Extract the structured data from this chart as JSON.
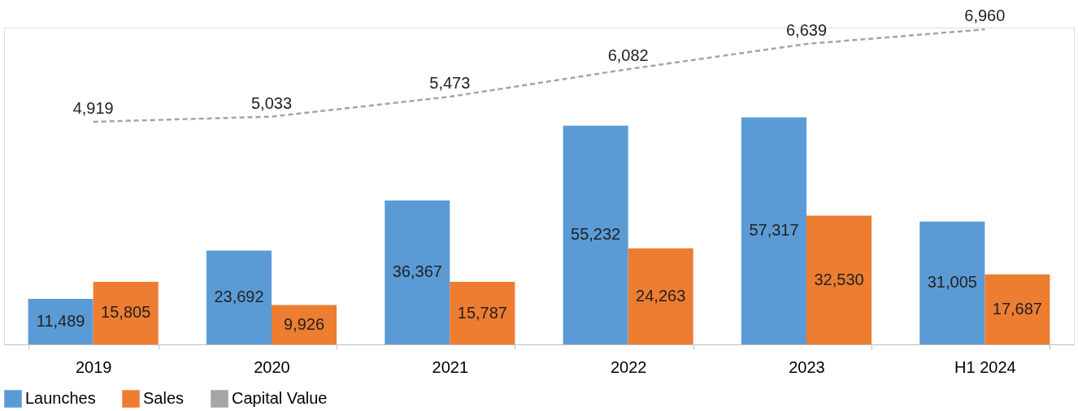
{
  "chart_data": {
    "type": "bar",
    "categories": [
      "2019",
      "2020",
      "2021",
      "2022",
      "2023",
      "H1 2024"
    ],
    "series": [
      {
        "name": "Launches",
        "color": "#5b9bd5",
        "values": [
          11489,
          23692,
          36367,
          55232,
          57317,
          31005
        ],
        "value_labels": [
          "11,489",
          "23,692",
          "36,367",
          "55,232",
          "57,317",
          "31,005"
        ]
      },
      {
        "name": "Sales",
        "color": "#ed7d31",
        "values": [
          15805,
          9926,
          15787,
          24263,
          32530,
          17687
        ],
        "value_labels": [
          "15,805",
          "9,926",
          "15,787",
          "24,263",
          "32,530",
          "17,687"
        ]
      },
      {
        "name": "Capital Value",
        "type": "line",
        "axis": "y2",
        "color": "#a5a5a5",
        "line_style": "dashed",
        "values": [
          4919,
          5033,
          5473,
          6082,
          6639,
          6960
        ],
        "value_labels": [
          "4,919",
          "5,033",
          "5,473",
          "6,082",
          "6,639",
          "6,960"
        ]
      }
    ],
    "legend": "bottom",
    "tick_labels": "x"
  }
}
